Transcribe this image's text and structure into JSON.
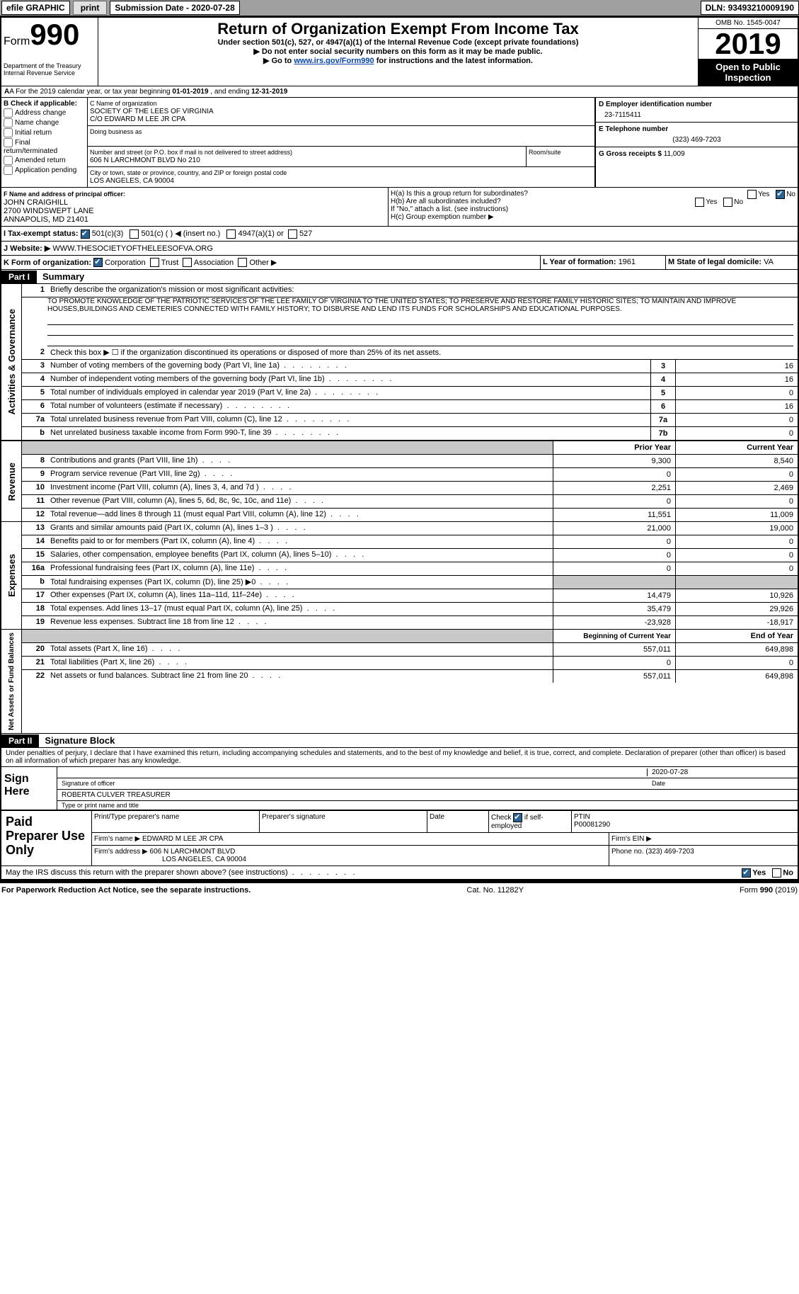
{
  "toolbar": {
    "efile": "efile GRAPHIC",
    "print": "print",
    "subdate_label": "Submission Date - ",
    "subdate": "2020-07-28",
    "dln_label": "DLN: ",
    "dln": "93493210009190"
  },
  "header": {
    "form_word": "Form",
    "form_no": "990",
    "title": "Return of Organization Exempt From Income Tax",
    "sub1": "Under section 501(c), 527, or 4947(a)(1) of the Internal Revenue Code (except private foundations)",
    "sub2": "▶ Do not enter social security numbers on this form as it may be made public.",
    "sub3_pre": "▶ Go to ",
    "sub3_link": "www.irs.gov/Form990",
    "sub3_post": " for instructions and the latest information.",
    "dept1": "Department of the Treasury",
    "dept2": "Internal Revenue Service",
    "omb": "OMB No. 1545-0047",
    "year": "2019",
    "open": "Open to Public Inspection"
  },
  "a_line": {
    "pre": "A For the 2019 calendar year, or tax year beginning ",
    "d1": "01-01-2019",
    "mid": " , and ending ",
    "d2": "12-31-2019"
  },
  "b": {
    "hdr": "B Check if applicable:",
    "opts": [
      "Address change",
      "Name change",
      "Initial return",
      "Final return/terminated",
      "Amended return",
      "Application pending"
    ]
  },
  "c": {
    "name_lbl": "C Name of organization",
    "name": "SOCIETY OF THE LEES OF VIRGINIA",
    "co": "C/O EDWARD M LEE JR CPA",
    "dba_lbl": "Doing business as",
    "dba": "",
    "addr_lbl": "Number and street (or P.O. box if mail is not delivered to street address)",
    "addr": "606 N LARCHMONT BLVD No 210",
    "room_lbl": "Room/suite",
    "room": "",
    "city_lbl": "City or town, state or province, country, and ZIP or foreign postal code",
    "city": "LOS ANGELES, CA  90004"
  },
  "d": {
    "lbl": "D Employer identification number",
    "val": "23-7115411"
  },
  "e": {
    "lbl": "E Telephone number",
    "val": "(323) 469-7203"
  },
  "g": {
    "lbl": "G Gross receipts $ ",
    "val": "11,009"
  },
  "f": {
    "lbl": "F  Name and address of principal officer:",
    "name": "JOHN CRAIGHILL",
    "l1": "2700 WINDSWEPT LANE",
    "l2": "ANNAPOLIS, MD  21401"
  },
  "h": {
    "a_lbl": "H(a)  Is this a group return for subordinates?",
    "a_yes": "Yes",
    "a_no": "No",
    "b_lbl": "H(b)  Are all subordinates included?",
    "b_yes": "Yes",
    "b_no": "No",
    "b_note": "If \"No,\" attach a list. (see instructions)",
    "c_lbl": "H(c)  Group exemption number ▶",
    "c_val": ""
  },
  "i": {
    "lbl": "I    Tax-exempt status:",
    "o1": "501(c)(3)",
    "o2": "501(c) (  ) ◀ (insert no.)",
    "o3": "4947(a)(1) or",
    "o4": "527"
  },
  "j": {
    "lbl": "J   Website: ▶ ",
    "val": "WWW.THESOCIETYOFTHELEESOFVA.ORG"
  },
  "k": {
    "lbl": "K Form of organization:",
    "o1": "Corporation",
    "o2": "Trust",
    "o3": "Association",
    "o4": "Other ▶"
  },
  "l": {
    "lbl": "L Year of formation: ",
    "val": "1961"
  },
  "m": {
    "lbl": "M State of legal domicile: ",
    "val": "VA"
  },
  "part1": {
    "num": "Part I",
    "title": "Summary"
  },
  "summary": {
    "l1_lbl": "Briefly describe the organization's mission or most significant activities:",
    "mission": "TO PROMOTE KNOWLEDGE OF THE PATRIOTIC SERVICES OF THE LEE FAMILY OF VIRGINIA TO THE UNITED STATES; TO PRESERVE AND RESTORE FAMILY HISTORIC SITES; TO MAINTAIN AND IMPROVE HOUSES,BUILDINGS AND CEMETERIES CONNECTED WITH FAMILY HISTORY; TO DISBURSE AND LEND ITS FUNDS FOR SCHOLARSHIPS AND EDUCATIONAL PURPOSES.",
    "l2": "Check this box ▶ ☐  if the organization discontinued its operations or disposed of more than 25% of its net assets.",
    "rows": [
      {
        "n": "3",
        "t": "Number of voting members of the governing body (Part VI, line 1a)",
        "box": "3",
        "v": "16"
      },
      {
        "n": "4",
        "t": "Number of independent voting members of the governing body (Part VI, line 1b)",
        "box": "4",
        "v": "16"
      },
      {
        "n": "5",
        "t": "Total number of individuals employed in calendar year 2019 (Part V, line 2a)",
        "box": "5",
        "v": "0"
      },
      {
        "n": "6",
        "t": "Total number of volunteers (estimate if necessary)",
        "box": "6",
        "v": "16"
      },
      {
        "n": "7a",
        "t": "Total unrelated business revenue from Part VIII, column (C), line 12",
        "box": "7a",
        "v": "0"
      },
      {
        "n": "b",
        "t": "Net unrelated business taxable income from Form 990-T, line 39",
        "box": "7b",
        "v": "0"
      }
    ],
    "colhdr": {
      "prior": "Prior Year",
      "curr": "Current Year"
    },
    "rev": [
      {
        "n": "8",
        "t": "Contributions and grants (Part VIII, line 1h)",
        "p": "9,300",
        "c": "8,540"
      },
      {
        "n": "9",
        "t": "Program service revenue (Part VIII, line 2g)",
        "p": "0",
        "c": "0"
      },
      {
        "n": "10",
        "t": "Investment income (Part VIII, column (A), lines 3, 4, and 7d )",
        "p": "2,251",
        "c": "2,469"
      },
      {
        "n": "11",
        "t": "Other revenue (Part VIII, column (A), lines 5, 6d, 8c, 9c, 10c, and 11e)",
        "p": "0",
        "c": "0"
      },
      {
        "n": "12",
        "t": "Total revenue—add lines 8 through 11 (must equal Part VIII, column (A), line 12)",
        "p": "11,551",
        "c": "11,009"
      }
    ],
    "exp": [
      {
        "n": "13",
        "t": "Grants and similar amounts paid (Part IX, column (A), lines 1–3 )",
        "p": "21,000",
        "c": "19,000"
      },
      {
        "n": "14",
        "t": "Benefits paid to or for members (Part IX, column (A), line 4)",
        "p": "0",
        "c": "0"
      },
      {
        "n": "15",
        "t": "Salaries, other compensation, employee benefits (Part IX, column (A), lines 5–10)",
        "p": "0",
        "c": "0"
      },
      {
        "n": "16a",
        "t": "Professional fundraising fees (Part IX, column (A), line 11e)",
        "p": "0",
        "c": "0"
      },
      {
        "n": "b",
        "t": "Total fundraising expenses (Part IX, column (D), line 25) ▶0",
        "p": "",
        "c": "",
        "shade": true
      },
      {
        "n": "17",
        "t": "Other expenses (Part IX, column (A), lines 11a–11d, 11f–24e)",
        "p": "14,479",
        "c": "10,926"
      },
      {
        "n": "18",
        "t": "Total expenses. Add lines 13–17 (must equal Part IX, column (A), line 25)",
        "p": "35,479",
        "c": "29,926"
      },
      {
        "n": "19",
        "t": "Revenue less expenses. Subtract line 18 from line 12",
        "p": "-23,928",
        "c": "-18,917"
      }
    ],
    "nethdr": {
      "b": "Beginning of Current Year",
      "e": "End of Year"
    },
    "net": [
      {
        "n": "20",
        "t": "Total assets (Part X, line 16)",
        "p": "557,011",
        "c": "649,898"
      },
      {
        "n": "21",
        "t": "Total liabilities (Part X, line 26)",
        "p": "0",
        "c": "0"
      },
      {
        "n": "22",
        "t": "Net assets or fund balances. Subtract line 21 from line 20",
        "p": "557,011",
        "c": "649,898"
      }
    ],
    "side": {
      "ag": "Activities & Governance",
      "rev": "Revenue",
      "exp": "Expenses",
      "net": "Net Assets or Fund Balances"
    }
  },
  "part2": {
    "num": "Part II",
    "title": "Signature Block"
  },
  "sig": {
    "decl": "Under penalties of perjury, I declare that I have examined this return, including accompanying schedules and statements, and to the best of my knowledge and belief, it is true, correct, and complete. Declaration of preparer (other than officer) is based on all information of which preparer has any knowledge.",
    "here": "Sign Here",
    "sig_lbl": "Signature of officer",
    "date_lbl": "Date",
    "date_val": "2020-07-28",
    "name": "ROBERTA CULVER  TREASURER",
    "name_lbl": "Type or print name and title"
  },
  "prep": {
    "hdr": "Paid Preparer Use Only",
    "c1": "Print/Type preparer's name",
    "c2": "Preparer's signature",
    "c3": "Date",
    "c4_lbl": "Check",
    "c4_txt": "if self-employed",
    "c5_lbl": "PTIN",
    "c5_val": "P00081290",
    "firm_lbl": "Firm's name    ▶",
    "firm": "EDWARD M LEE JR CPA",
    "ein_lbl": "Firm's EIN ▶",
    "ein": "",
    "addr_lbl": "Firm's address ▶",
    "addr1": "606 N LARCHMONT BLVD",
    "addr2": "LOS ANGELES, CA  90004",
    "ph_lbl": "Phone no. ",
    "ph": "(323) 469-7203",
    "discuss": "May the IRS discuss this return with the preparer shown above? (see instructions)",
    "yes": "Yes",
    "no": "No"
  },
  "footer": {
    "l": "For Paperwork Reduction Act Notice, see the separate instructions.",
    "m": "Cat. No. 11282Y",
    "r": "Form 990 (2019)"
  }
}
